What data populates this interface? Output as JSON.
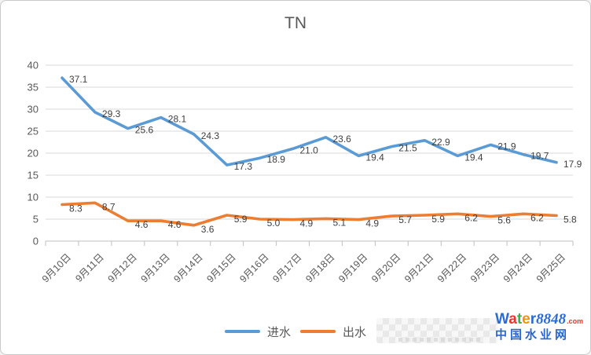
{
  "frame": {
    "background": "#ffffff",
    "border_color": "#c9c9c9"
  },
  "chart_data": {
    "type": "line",
    "title": "TN",
    "categories": [
      "9月10日",
      "9月11日",
      "9月12日",
      "9月13日",
      "9月14日",
      "9月15日",
      "9月16日",
      "9月17日",
      "9月18日",
      "9月19日",
      "9月20日",
      "9月21日",
      "9月22日",
      "9月23日",
      "9月24日",
      "9月25日"
    ],
    "series": [
      {
        "name": "进水",
        "color": "#5b9bd5",
        "values": [
          37.1,
          29.3,
          25.6,
          28.1,
          24.3,
          17.3,
          18.9,
          21.0,
          23.6,
          19.4,
          21.5,
          22.9,
          19.4,
          21.9,
          19.7,
          17.9
        ],
        "labels": [
          "37.1",
          "29.3",
          "25.6",
          "28.1",
          "24.3",
          "17.3",
          "18.9",
          "21.0",
          "23.6",
          "19.4",
          "21.5",
          "22.9",
          "19.4",
          "21.9",
          "19.7",
          "17.9"
        ]
      },
      {
        "name": "出水",
        "color": "#ed7d31",
        "values": [
          8.3,
          8.7,
          4.6,
          4.6,
          3.6,
          5.9,
          5.0,
          4.9,
          5.1,
          4.9,
          5.7,
          5.9,
          6.2,
          5.6,
          6.2,
          5.8
        ],
        "labels": [
          "8.3",
          "8.7",
          "4.6",
          "4.6",
          "3.6",
          "5.9",
          "5.0",
          "4.9",
          "5.1",
          "4.9",
          "5.7",
          "5.9",
          "6.2",
          "5.6",
          "6.2",
          "5.8"
        ]
      }
    ],
    "ylim": [
      0,
      40
    ],
    "ytick_step": 5,
    "ytick_labels": [
      "0",
      "5",
      "10",
      "15",
      "20",
      "25",
      "30",
      "35",
      "40"
    ],
    "grid": true,
    "legend_position": "bottom",
    "colors": {
      "gridline": "#d9d9d9",
      "axis_line": "#bfbfbf",
      "axis_label": "#595959",
      "data_label": "#3f3f3f",
      "title": "#595959"
    }
  },
  "watermark": {
    "brand_letters": [
      {
        "ch": "W",
        "color": "#2b6cd4"
      },
      {
        "ch": "a",
        "color": "#e0392d"
      },
      {
        "ch": "t",
        "color": "#3faf4b"
      },
      {
        "ch": "e",
        "color": "#f29111"
      },
      {
        "ch": "r",
        "color": "#2b6cd4"
      }
    ],
    "brand_suffix": "8848",
    "brand_suffix_color": "#2b6cd4",
    "domain": ".com",
    "domain_color": "#e0392d",
    "subtitle": "中国水业网",
    "subtitle_color": "#2a66cc"
  }
}
